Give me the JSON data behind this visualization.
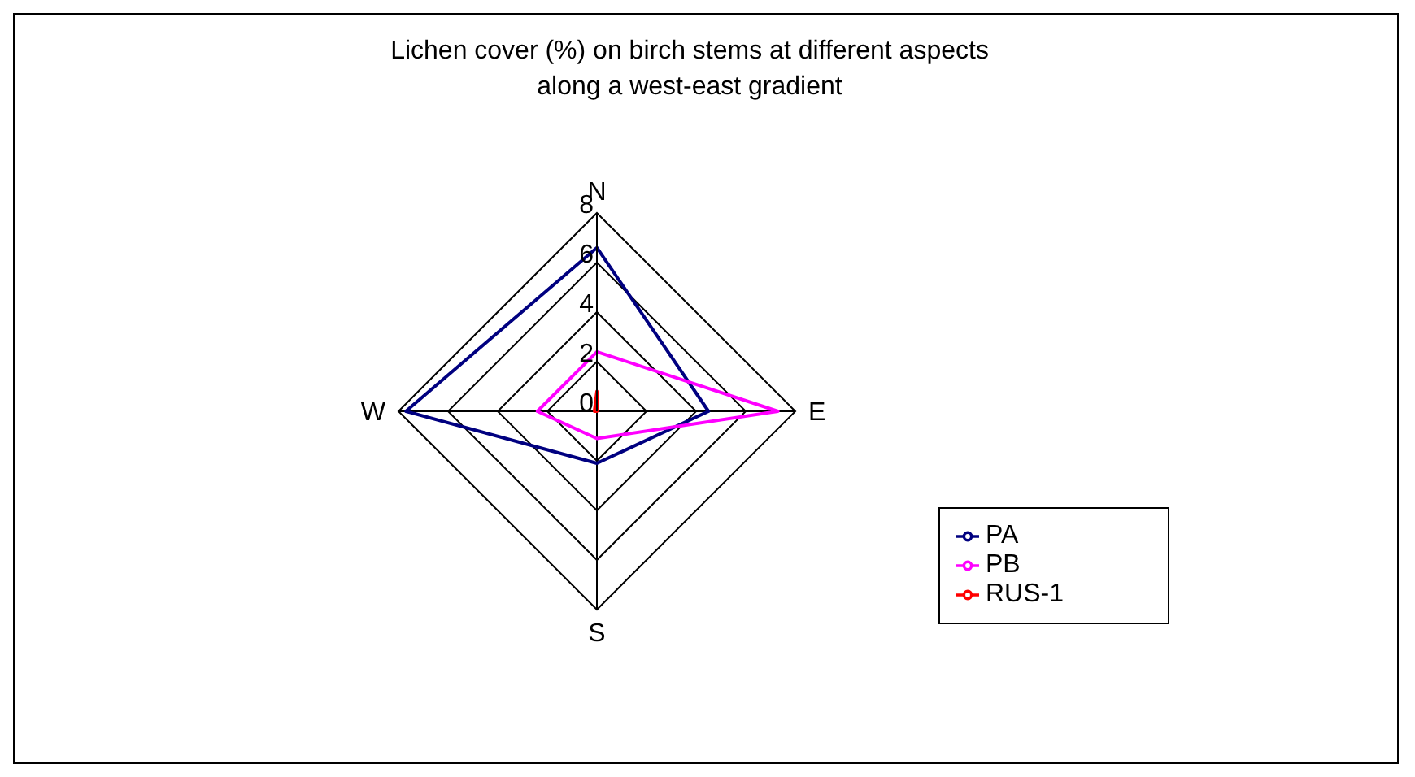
{
  "chart_data": {
    "type": "radar",
    "title": "Lichen cover (%) on birch stems at different aspects along a west-east gradient",
    "categories": [
      "N",
      "E",
      "S",
      "W"
    ],
    "ylim": [
      0,
      8
    ],
    "yticks": [
      0,
      2,
      4,
      6,
      8
    ],
    "grid": true,
    "legend": "right",
    "series": [
      {
        "name": "PA",
        "color": "#000080",
        "values": [
          6.6,
          4.5,
          2.1,
          7.7
        ]
      },
      {
        "name": "PB",
        "color": "#ff00ff",
        "values": [
          2.4,
          7.3,
          1.1,
          2.4
        ]
      },
      {
        "name": "RUS-1",
        "color": "#ff0000",
        "values": [
          0.8,
          0,
          0,
          0.1
        ]
      }
    ]
  }
}
